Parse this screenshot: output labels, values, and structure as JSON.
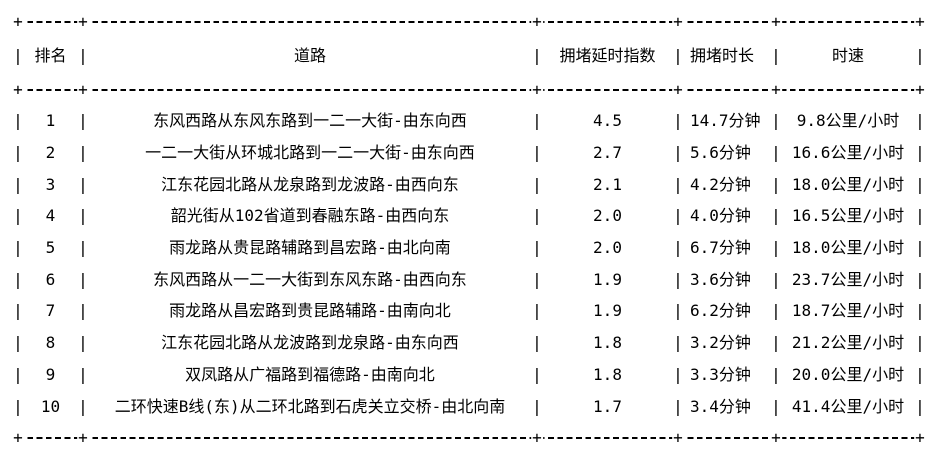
{
  "table": {
    "columns": {
      "rank": "排名",
      "road": "道路",
      "delay_index": "拥堵延时指数",
      "duration": "拥堵时长",
      "speed": "时速"
    },
    "rows": [
      {
        "rank": "1",
        "road": "东风西路从东风东路到一二一大街-由东向西",
        "delay_index": "4.5",
        "duration": "14.7分钟",
        "speed": "9.8公里/小时"
      },
      {
        "rank": "2",
        "road": "一二一大街从环城北路到一二一大街-由东向西",
        "delay_index": "2.7",
        "duration": "5.6分钟",
        "speed": "16.6公里/小时"
      },
      {
        "rank": "3",
        "road": "江东花园北路从龙泉路到龙波路-由西向东",
        "delay_index": "2.1",
        "duration": "4.2分钟",
        "speed": "18.0公里/小时"
      },
      {
        "rank": "4",
        "road": "韶光街从102省道到春融东路-由西向东",
        "delay_index": "2.0",
        "duration": "4.0分钟",
        "speed": "16.5公里/小时"
      },
      {
        "rank": "5",
        "road": "雨龙路从贵昆路辅路到昌宏路-由北向南",
        "delay_index": "2.0",
        "duration": "6.7分钟",
        "speed": "18.0公里/小时"
      },
      {
        "rank": "6",
        "road": "东风西路从一二一大街到东风东路-由西向东",
        "delay_index": "1.9",
        "duration": "3.6分钟",
        "speed": "23.7公里/小时"
      },
      {
        "rank": "7",
        "road": "雨龙路从昌宏路到贵昆路辅路-由南向北",
        "delay_index": "1.9",
        "duration": "6.2分钟",
        "speed": "18.7公里/小时"
      },
      {
        "rank": "8",
        "road": "江东花园北路从龙波路到龙泉路-由东向西",
        "delay_index": "1.8",
        "duration": "3.2分钟",
        "speed": "21.2公里/小时"
      },
      {
        "rank": "9",
        "road": "双凤路从广福路到福德路-由南向北",
        "delay_index": "1.8",
        "duration": "3.3分钟",
        "speed": "20.0公里/小时"
      },
      {
        "rank": "10",
        "road": "二环快速B线(东)从二环北路到石虎关立交桥-由北向南",
        "delay_index": "1.7",
        "duration": "3.4分钟",
        "speed": "41.4公里/小时"
      }
    ]
  },
  "glyphs": {
    "vertical_separator": "|",
    "junction": "+",
    "dash": "-"
  },
  "colors": {
    "text": "#000000",
    "background": "#ffffff"
  }
}
